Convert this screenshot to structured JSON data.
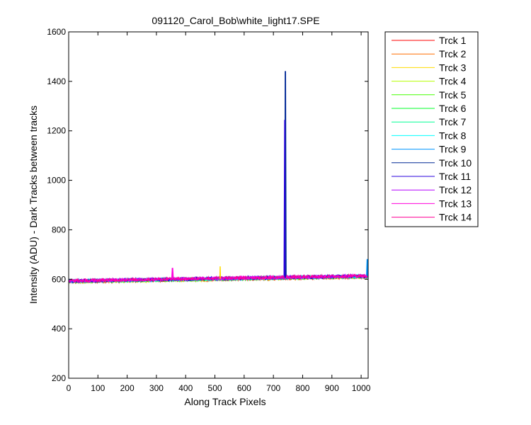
{
  "chart_data": {
    "type": "line",
    "title": "091120_Carol_Bob\\white_light17.SPE",
    "xlabel": "Along Track Pixels",
    "ylabel": "Intensity (ADU) - Dark Tracks between tracks",
    "xlim": [
      0,
      1024
    ],
    "ylim": [
      200,
      1600
    ],
    "xticks": [
      0,
      100,
      200,
      300,
      400,
      500,
      600,
      700,
      800,
      900,
      1000
    ],
    "yticks": [
      200,
      400,
      600,
      800,
      1000,
      1200,
      1400,
      1600
    ],
    "grid": false,
    "legend_position": "outside-top-right",
    "baseline_trend": {
      "x": [
        0,
        1024
      ],
      "y": [
        592,
        612
      ]
    },
    "series": [
      {
        "name": "Trck 1",
        "color": "#ff0000"
      },
      {
        "name": "Trck 2",
        "color": "#ff6e00"
      },
      {
        "name": "Trck 3",
        "color": "#ffdc00"
      },
      {
        "name": "Trck 4",
        "color": "#b4ff00"
      },
      {
        "name": "Trck 5",
        "color": "#46ff00"
      },
      {
        "name": "Trck 6",
        "color": "#00ff28"
      },
      {
        "name": "Trck 7",
        "color": "#00ff96"
      },
      {
        "name": "Trck 8",
        "color": "#00ffff"
      },
      {
        "name": "Trck 9",
        "color": "#0096ff"
      },
      {
        "name": "Trck 10",
        "color": "#002896"
      },
      {
        "name": "Trck 11",
        "color": "#2800dc"
      },
      {
        "name": "Trck 12",
        "color": "#b400ff"
      },
      {
        "name": "Trck 13",
        "color": "#ff00dc"
      },
      {
        "name": "Trck 14",
        "color": "#ff0096"
      }
    ],
    "spikes": [
      {
        "series": "Trck 10",
        "x": 741,
        "y": 1440
      },
      {
        "series": "Trck 11",
        "x": 739,
        "y": 1243
      },
      {
        "series": "Trck 13",
        "x": 355,
        "y": 645
      },
      {
        "series": "Trck 3",
        "x": 518,
        "y": 652
      },
      {
        "series": "Trck 9",
        "x": 1021,
        "y": 680
      }
    ]
  }
}
